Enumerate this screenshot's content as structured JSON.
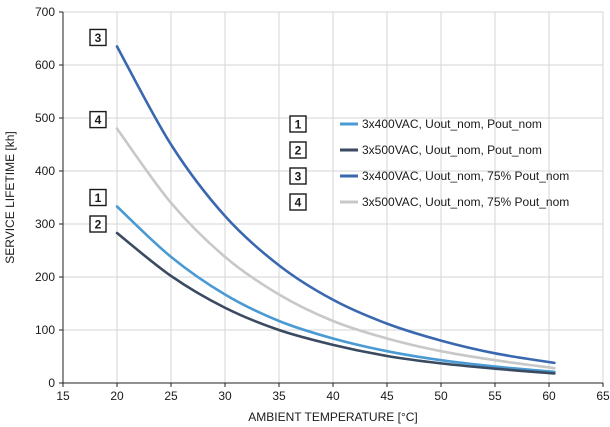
{
  "chart_data": {
    "type": "line",
    "xlabel": "AMBIENT TEMPERATURE [°C]",
    "ylabel": "SERVICE LIFETIME [kh]",
    "xlim": [
      15,
      65
    ],
    "ylim": [
      0,
      700
    ],
    "x_ticks": [
      "15",
      "20",
      "25",
      "30",
      "35",
      "40",
      "45",
      "50",
      "55",
      "60",
      "65"
    ],
    "y_ticks": [
      "0",
      "100",
      "200",
      "300",
      "400",
      "500",
      "600",
      "700"
    ],
    "grid": true,
    "legend_position": "right",
    "series": [
      {
        "name": "3x400VAC, Uout_nom, Pout_nom",
        "badge": "1",
        "color": "#4a9ad4",
        "x": [
          20,
          25,
          30,
          35,
          40,
          45,
          50,
          55,
          60.5
        ],
        "y": [
          333,
          238,
          167,
          117,
          84,
          60,
          43,
          31,
          21
        ]
      },
      {
        "name": "3x500VAC, Uout_nom, Pout_nom",
        "badge": "2",
        "color": "#3a4a60",
        "x": [
          20,
          25,
          30,
          35,
          40,
          45,
          50,
          55,
          60.5
        ],
        "y": [
          283,
          202,
          142,
          100,
          72,
          51,
          37,
          27,
          18
        ]
      },
      {
        "name": "3x400VAC, Uout_nom, 75% Pout_nom",
        "badge": "3",
        "color": "#3a68b0",
        "x": [
          20,
          25,
          30,
          35,
          40,
          45,
          50,
          55,
          60.5
        ],
        "y": [
          635,
          450,
          315,
          222,
          157,
          112,
          80,
          56,
          38
        ]
      },
      {
        "name": "3x500VAC, Uout_nom, 75% Pout_nom",
        "badge": "4",
        "color": "#c8c8c8",
        "x": [
          20,
          25,
          30,
          35,
          40,
          45,
          50,
          55,
          60.5
        ],
        "y": [
          480,
          340,
          238,
          167,
          117,
          84,
          60,
          43,
          28
        ]
      }
    ]
  }
}
